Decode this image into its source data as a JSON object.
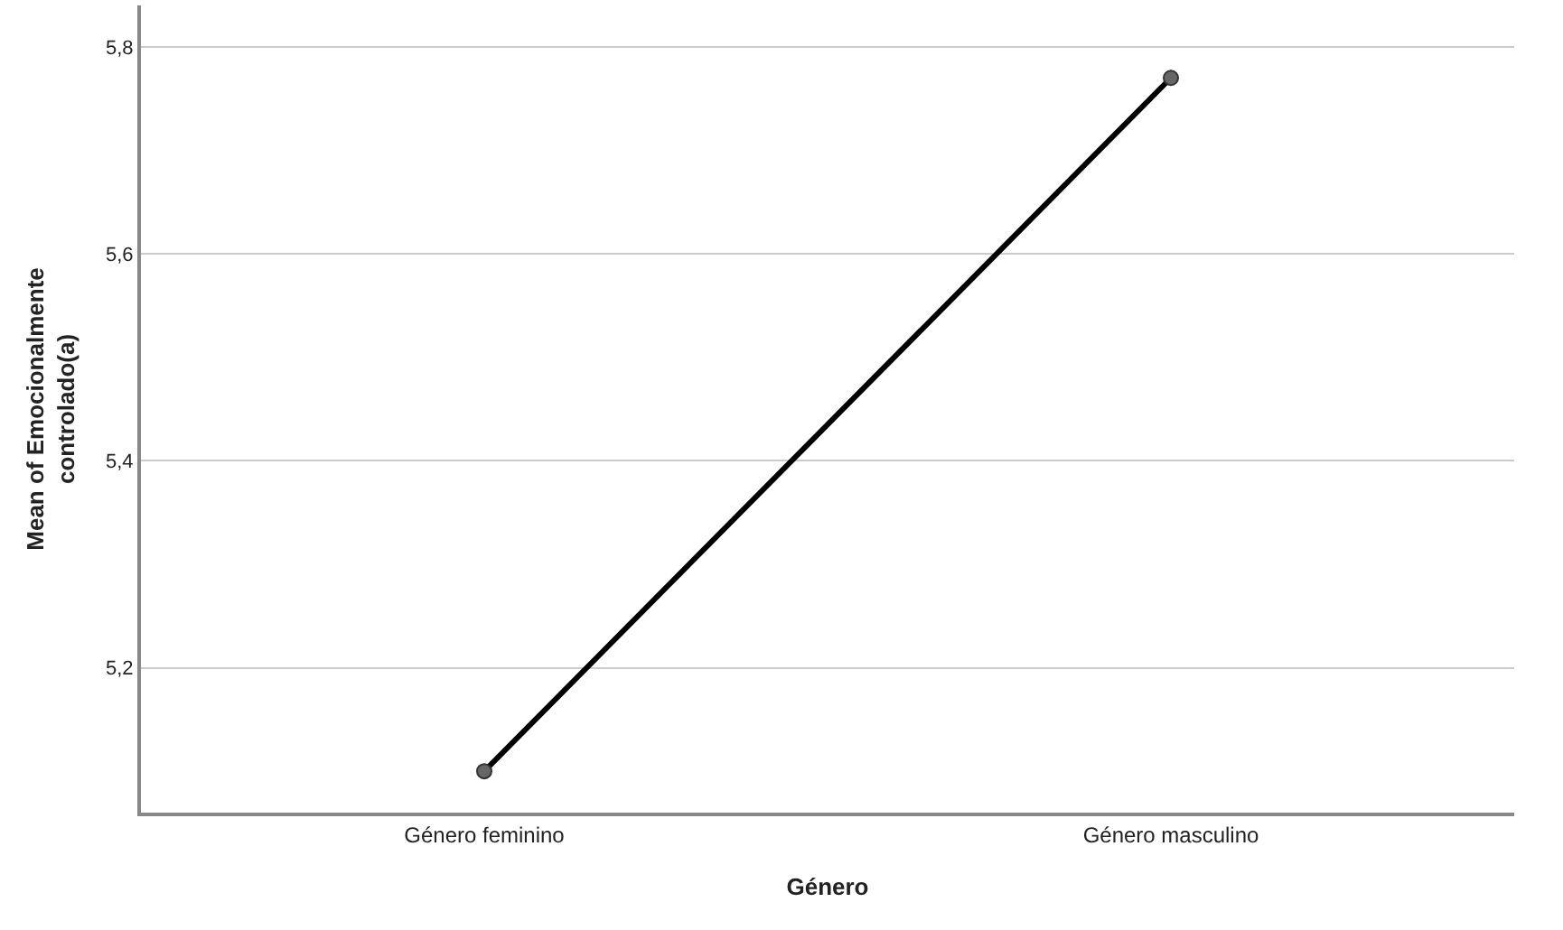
{
  "chart_data": {
    "type": "line",
    "xlabel": "Género",
    "ylabel": "Mean of Emocionalmente\ncontrolado(a)",
    "categories": [
      "Género feminino",
      "Género masculino"
    ],
    "series": [
      {
        "color": "#000000",
        "values": [
          5.1,
          5.77
        ]
      }
    ],
    "ylim": [
      5.06,
      5.84
    ],
    "yticks": [
      {
        "value": 5.2,
        "label": "5,2"
      },
      {
        "value": 5.4,
        "label": "5,4"
      },
      {
        "value": 5.6,
        "label": "5,6"
      },
      {
        "value": 5.8,
        "label": "5,8"
      }
    ],
    "grid": "y",
    "marker": "circle",
    "line_style": "solid"
  }
}
